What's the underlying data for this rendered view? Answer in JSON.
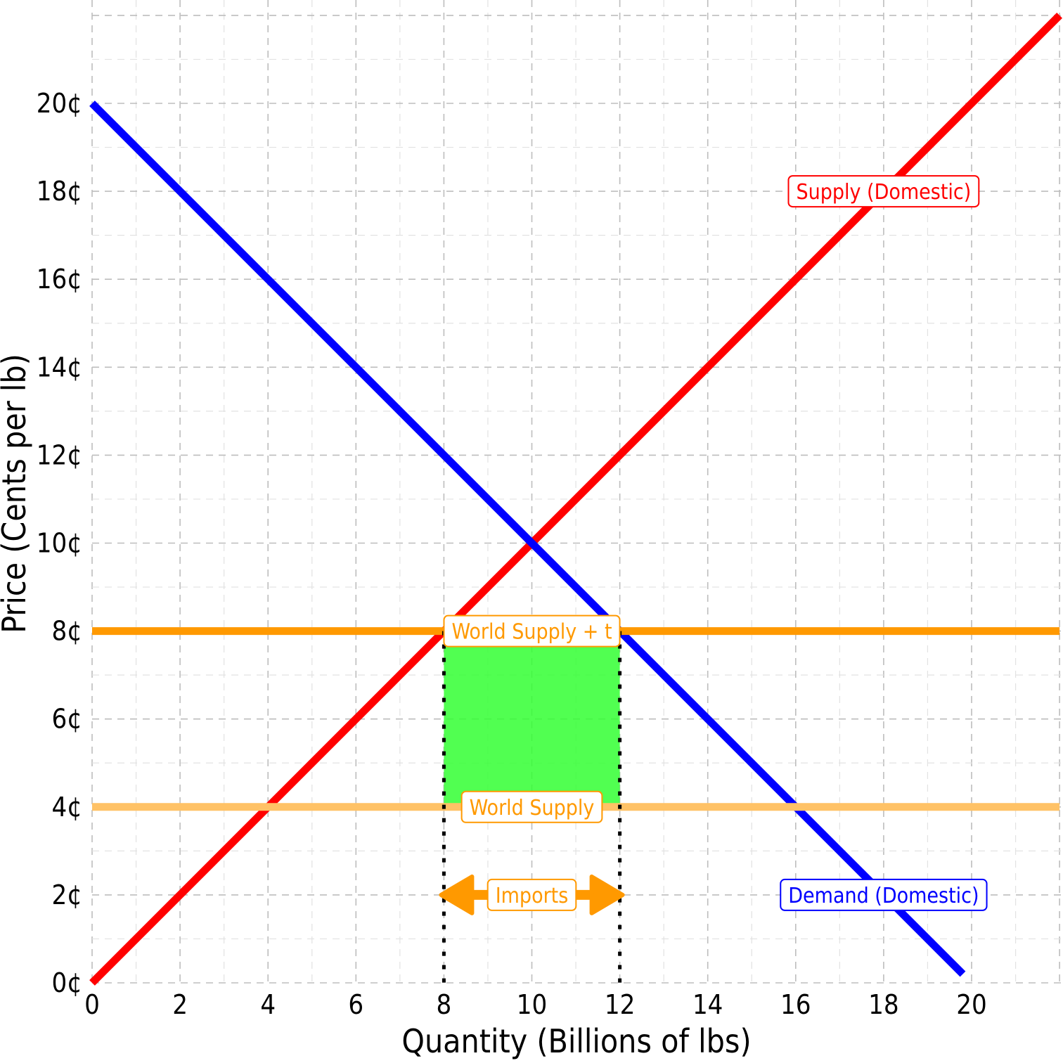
{
  "chart_data": {
    "type": "line",
    "title": "",
    "xlabel": "Quantity (Billions of lbs)",
    "ylabel": "Price (Cents per lb)",
    "xlim": [
      0,
      22
    ],
    "ylim": [
      0,
      22
    ],
    "x_ticks": [
      0,
      2,
      4,
      6,
      8,
      10,
      12,
      14,
      16,
      18,
      20
    ],
    "x_tick_labels": [
      "0",
      "2",
      "4",
      "6",
      "8",
      "10",
      "12",
      "14",
      "16",
      "18",
      "20"
    ],
    "y_ticks": [
      0,
      2,
      4,
      6,
      8,
      10,
      12,
      14,
      16,
      18,
      20
    ],
    "y_tick_labels": [
      "0¢",
      "2¢",
      "4¢",
      "6¢",
      "8¢",
      "10¢",
      "12¢",
      "14¢",
      "16¢",
      "18¢",
      "20¢"
    ],
    "grid": true,
    "series": [
      {
        "name": "Supply (Domestic)",
        "color": "#ff0000",
        "points": [
          [
            0,
            0
          ],
          [
            22,
            22
          ]
        ]
      },
      {
        "name": "Demand (Domestic)",
        "color": "#0000ff",
        "points": [
          [
            0,
            20
          ],
          [
            19.8,
            0.2
          ]
        ]
      },
      {
        "name": "World Supply + t",
        "color": "#ff9900",
        "points": [
          [
            0,
            8
          ],
          [
            22,
            8
          ]
        ]
      },
      {
        "name": "World Supply",
        "color": "#ffc266",
        "points": [
          [
            0,
            4
          ],
          [
            22,
            4
          ]
        ]
      }
    ],
    "shaded_region": {
      "x": [
        8,
        12
      ],
      "y": [
        4,
        8
      ],
      "color": "#33ff33"
    },
    "reference_lines": [
      {
        "x": 8,
        "y_range": [
          0,
          8
        ]
      },
      {
        "x": 12,
        "y_range": [
          0,
          8
        ]
      }
    ],
    "annotations": [
      {
        "text": "Supply (Domestic)",
        "x": 18,
        "y": 18,
        "color": "#ff0000"
      },
      {
        "text": "Demand (Domestic)",
        "x": 18,
        "y": 2,
        "color": "#0000ff"
      },
      {
        "text": "World Supply + t",
        "x": 10,
        "y": 8,
        "color": "#ff9900"
      },
      {
        "text": "World Supply",
        "x": 10,
        "y": 4,
        "color": "#ff9900"
      },
      {
        "text": "Imports",
        "x": 10,
        "y": 2,
        "color": "#ff9900"
      }
    ],
    "imports_arrow": {
      "x": [
        8,
        12
      ],
      "y": 2,
      "color": "#ff9900"
    }
  }
}
